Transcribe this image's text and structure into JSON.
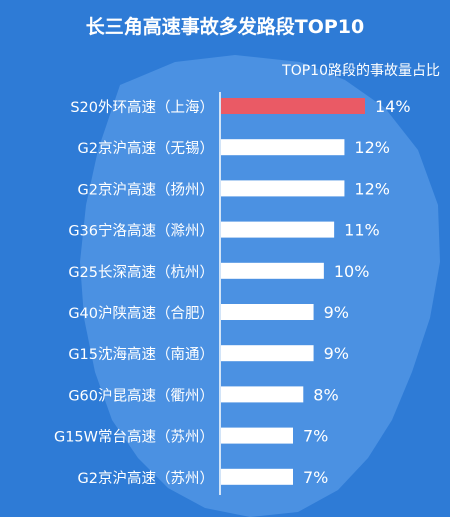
{
  "colors": {
    "background": "#2e7bd6",
    "map_shape": "#4b91e2",
    "bar_default": "#ffffff",
    "bar_highlight": "#ea5a65",
    "axis": "#ffffff",
    "text": "#ffffff"
  },
  "chart_data": {
    "type": "bar",
    "orientation": "horizontal",
    "title": "长三角高速事故多发路段TOP10",
    "subtitle": "TOP10路段的事故量占比",
    "value_suffix": "%",
    "categories": [
      "S20外环高速（上海）",
      "G2京沪高速（无锡）",
      "G2京沪高速（扬州）",
      "G36宁洛高速（滁州）",
      "G25长深高速（杭州）",
      "G40沪陕高速（合肥）",
      "G15沈海高速（南通）",
      "G60沪昆高速（衢州）",
      "G15W常台高速（苏州）",
      "G2京沪高速（苏州）"
    ],
    "values": [
      14,
      12,
      12,
      11,
      10,
      9,
      9,
      8,
      7,
      7
    ],
    "highlight_index": 0,
    "xlim": [
      0,
      14
    ],
    "grid": false,
    "legend": "none"
  }
}
